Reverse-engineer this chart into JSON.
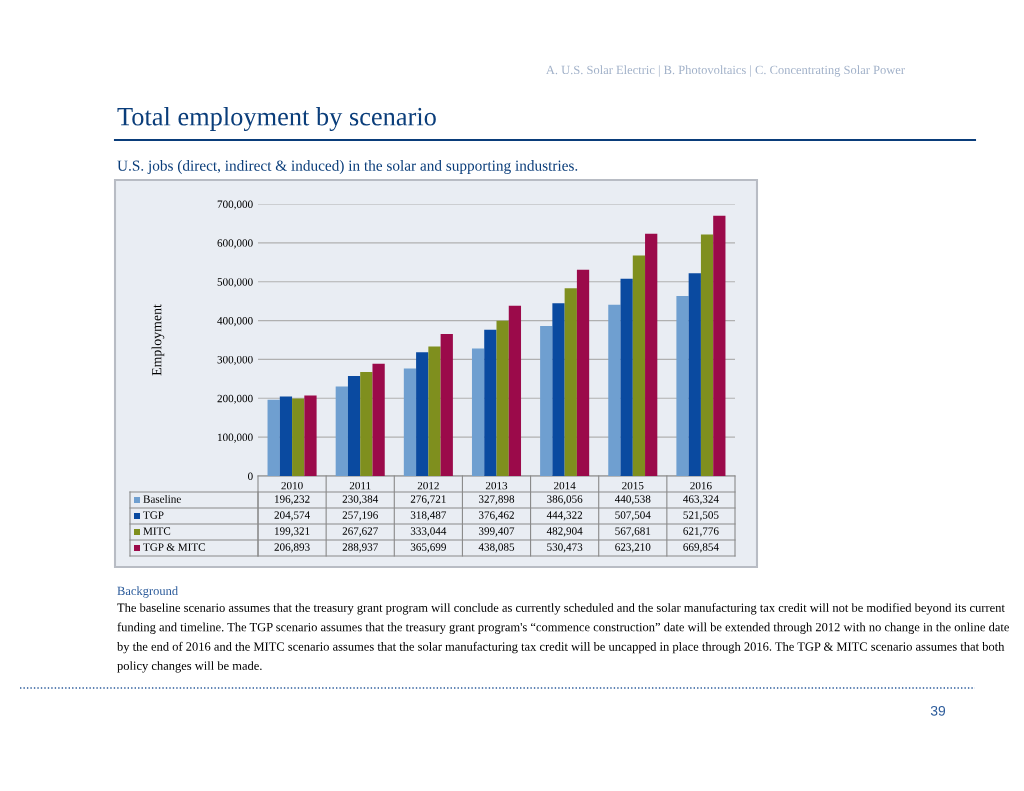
{
  "chart_data": {
    "type": "bar",
    "title": "Total employment by scenario",
    "subtitle": "U.S. jobs (direct, indirect & induced) in the solar and supporting industries.",
    "ylabel": "Employment",
    "categories": [
      "2010",
      "2011",
      "2012",
      "2013",
      "2014",
      "2015",
      "2016"
    ],
    "series": [
      {
        "name": "Baseline",
        "color": "#6f9fd0",
        "values": [
          196232,
          230384,
          276721,
          327898,
          386056,
          440538,
          463324
        ],
        "value_labels": [
          "196,232",
          "230,384",
          "276,721",
          "327,898",
          "386,056",
          "440,538",
          "463,324"
        ]
      },
      {
        "name": "TGP",
        "color": "#0a4aa0",
        "values": [
          204574,
          257196,
          318487,
          376462,
          444322,
          507504,
          521505
        ],
        "value_labels": [
          "204,574",
          "257,196",
          "318,487",
          "376,462",
          "444,322",
          "507,504",
          "521,505"
        ]
      },
      {
        "name": "MITC",
        "color": "#7f8f1e",
        "values": [
          199321,
          267627,
          333044,
          399407,
          482904,
          567681,
          621776
        ],
        "value_labels": [
          "199,321",
          "267,627",
          "333,044",
          "399,407",
          "482,904",
          "567,681",
          "621,776"
        ]
      },
      {
        "name": "TGP & MITC",
        "color": "#9b0a4a",
        "values": [
          206893,
          288937,
          365699,
          438085,
          530473,
          623210,
          669854
        ],
        "value_labels": [
          "206,893",
          "288,937",
          "365,699",
          "438,085",
          "530,473",
          "623,210",
          "669,854"
        ]
      }
    ],
    "ylim": [
      0,
      700000
    ],
    "yticks": [
      {
        "value": 0,
        "label": "0"
      },
      {
        "value": 100000,
        "label": "100,000"
      },
      {
        "value": 200000,
        "label": "200,000"
      },
      {
        "value": 300000,
        "label": "300,000"
      },
      {
        "value": 400000,
        "label": "400,000"
      },
      {
        "value": 500000,
        "label": "500,000"
      },
      {
        "value": 600000,
        "label": "600,000"
      },
      {
        "value": 700000,
        "label": "700,000"
      }
    ],
    "grid": "y",
    "legend": "bottom",
    "annotations": [
      "A. U.S. Solar Electric | B. Photovoltaics | C. Concentrating Solar Power",
      "Background",
      "The baseline scenario assumes that the treasury grant program will conclude as currently scheduled and the solar manufacturing tax credit will not be modified beyond its current funding and timeline. The TGP scenario assumes that the treasury grant program's “commence construction” date will be extended through 2012 with no change in the online date by the end of 2016 and the MITC scenario assumes that the solar manufacturing tax credit will be uncapped in place through 2016. The TGP & MITC scenario assumes that both policy changes will be made.",
      "39"
    ]
  }
}
